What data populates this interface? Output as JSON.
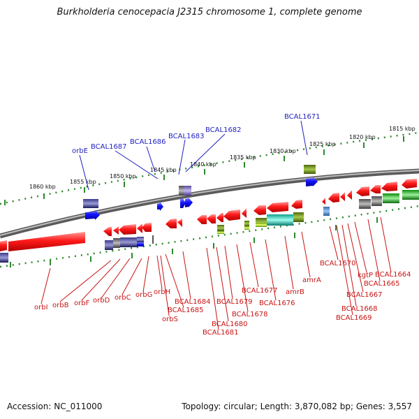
{
  "title": "Burkholderia cenocepacia J2315 chromosome 1, complete genome",
  "footer": {
    "accession_label": "Accession:",
    "accession": "NC_011000",
    "topology_label": "Topology:",
    "topology": "circular",
    "length_label": "Length:",
    "length": "3,870,082 bp",
    "genes_label": "Genes:",
    "genes": "3,557"
  },
  "colors": {
    "backbone": "#808080",
    "tick": "#2d8a2d",
    "upper_label": "#1f1fbf",
    "lower_label": "#c81414",
    "upper_gene": "#1010ee",
    "lower_gene": "#ee1010"
  },
  "ticks": [
    {
      "label": "1860 kbp"
    },
    {
      "label": "1855 kbp"
    },
    {
      "label": "1850 kbp"
    },
    {
      "label": "1845 kbp"
    },
    {
      "label": "1840 kbp"
    },
    {
      "label": "1835 kbp"
    },
    {
      "label": "1830 kbp"
    },
    {
      "label": "1825 kbp"
    },
    {
      "label": "1820 kbp"
    },
    {
      "label": "1815 kbp"
    }
  ],
  "upper_labels": [
    {
      "text": "orbE"
    },
    {
      "text": "BCAL1687"
    },
    {
      "text": "BCAL1686"
    },
    {
      "text": "BCAL1683"
    },
    {
      "text": "BCAL1682"
    },
    {
      "text": "BCAL1671"
    }
  ],
  "lower_labels": [
    {
      "text": "orbI"
    },
    {
      "text": "orbB"
    },
    {
      "text": "orbF"
    },
    {
      "text": "orbD"
    },
    {
      "text": "orbC"
    },
    {
      "text": "orbG"
    },
    {
      "text": "orbH"
    },
    {
      "text": "orbS"
    },
    {
      "text": "BCAL1685"
    },
    {
      "text": "BCAL1684"
    },
    {
      "text": "BCAL1681"
    },
    {
      "text": "BCAL1680"
    },
    {
      "text": "BCAL1679"
    },
    {
      "text": "BCAL1678"
    },
    {
      "text": "BCAL1677"
    },
    {
      "text": "BCAL1676"
    },
    {
      "text": "amrB"
    },
    {
      "text": "amrA"
    },
    {
      "text": "BCAL1670"
    },
    {
      "text": "BCAL1669"
    },
    {
      "text": "BCAL1668"
    },
    {
      "text": "BCAL1667"
    },
    {
      "text": "kgtP"
    },
    {
      "text": "BCAL1665"
    },
    {
      "text": "BCAL1664"
    }
  ]
}
